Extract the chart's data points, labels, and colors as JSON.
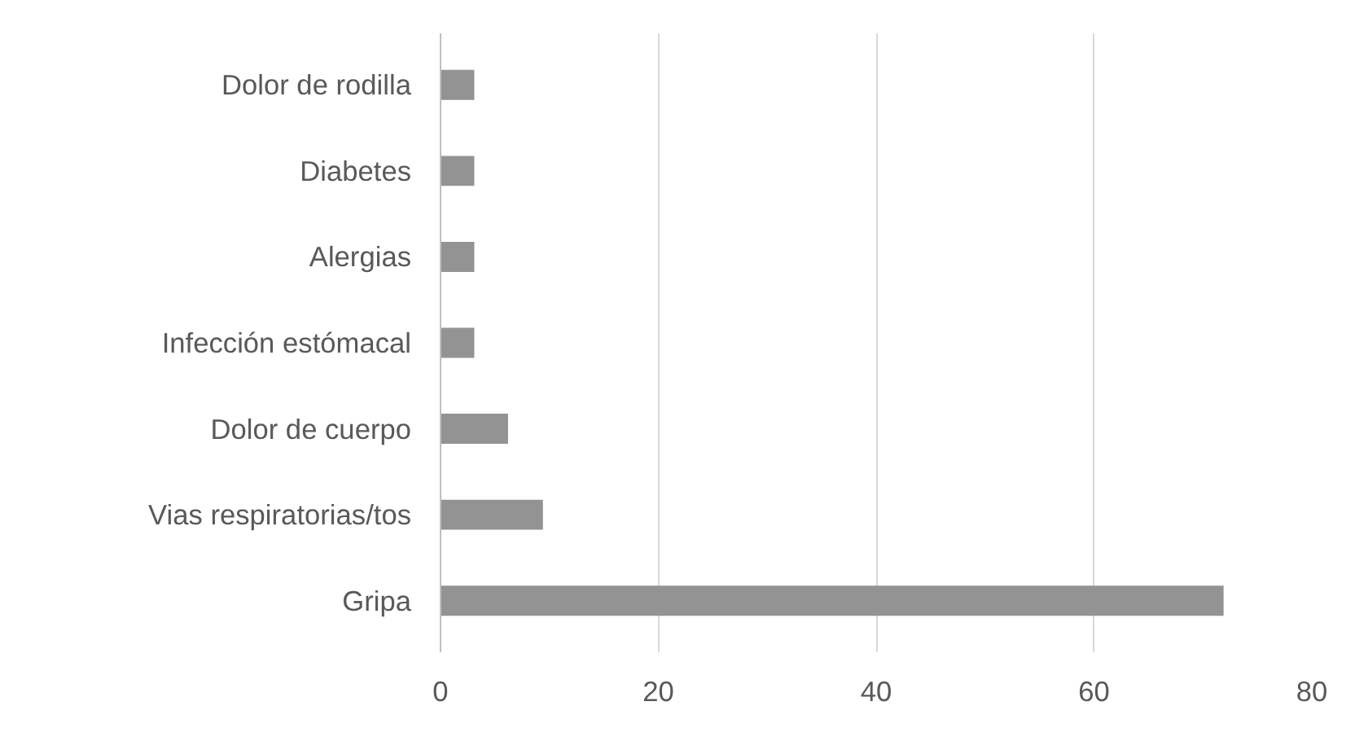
{
  "chart_data": {
    "type": "bar",
    "orientation": "horizontal",
    "categories": [
      "Dolor de rodilla",
      "Diabetes",
      "Alergias",
      "Infección estómacal",
      "Dolor de cuerpo",
      "Vias respiratorias/tos",
      "Gripa"
    ],
    "values": [
      3.1,
      3.1,
      3.1,
      3.1,
      6.2,
      9.4,
      71.9
    ],
    "color": "#939393",
    "xlim": [
      0,
      80
    ],
    "xticks": [
      0,
      20,
      40,
      60,
      80
    ],
    "grid": "x"
  }
}
